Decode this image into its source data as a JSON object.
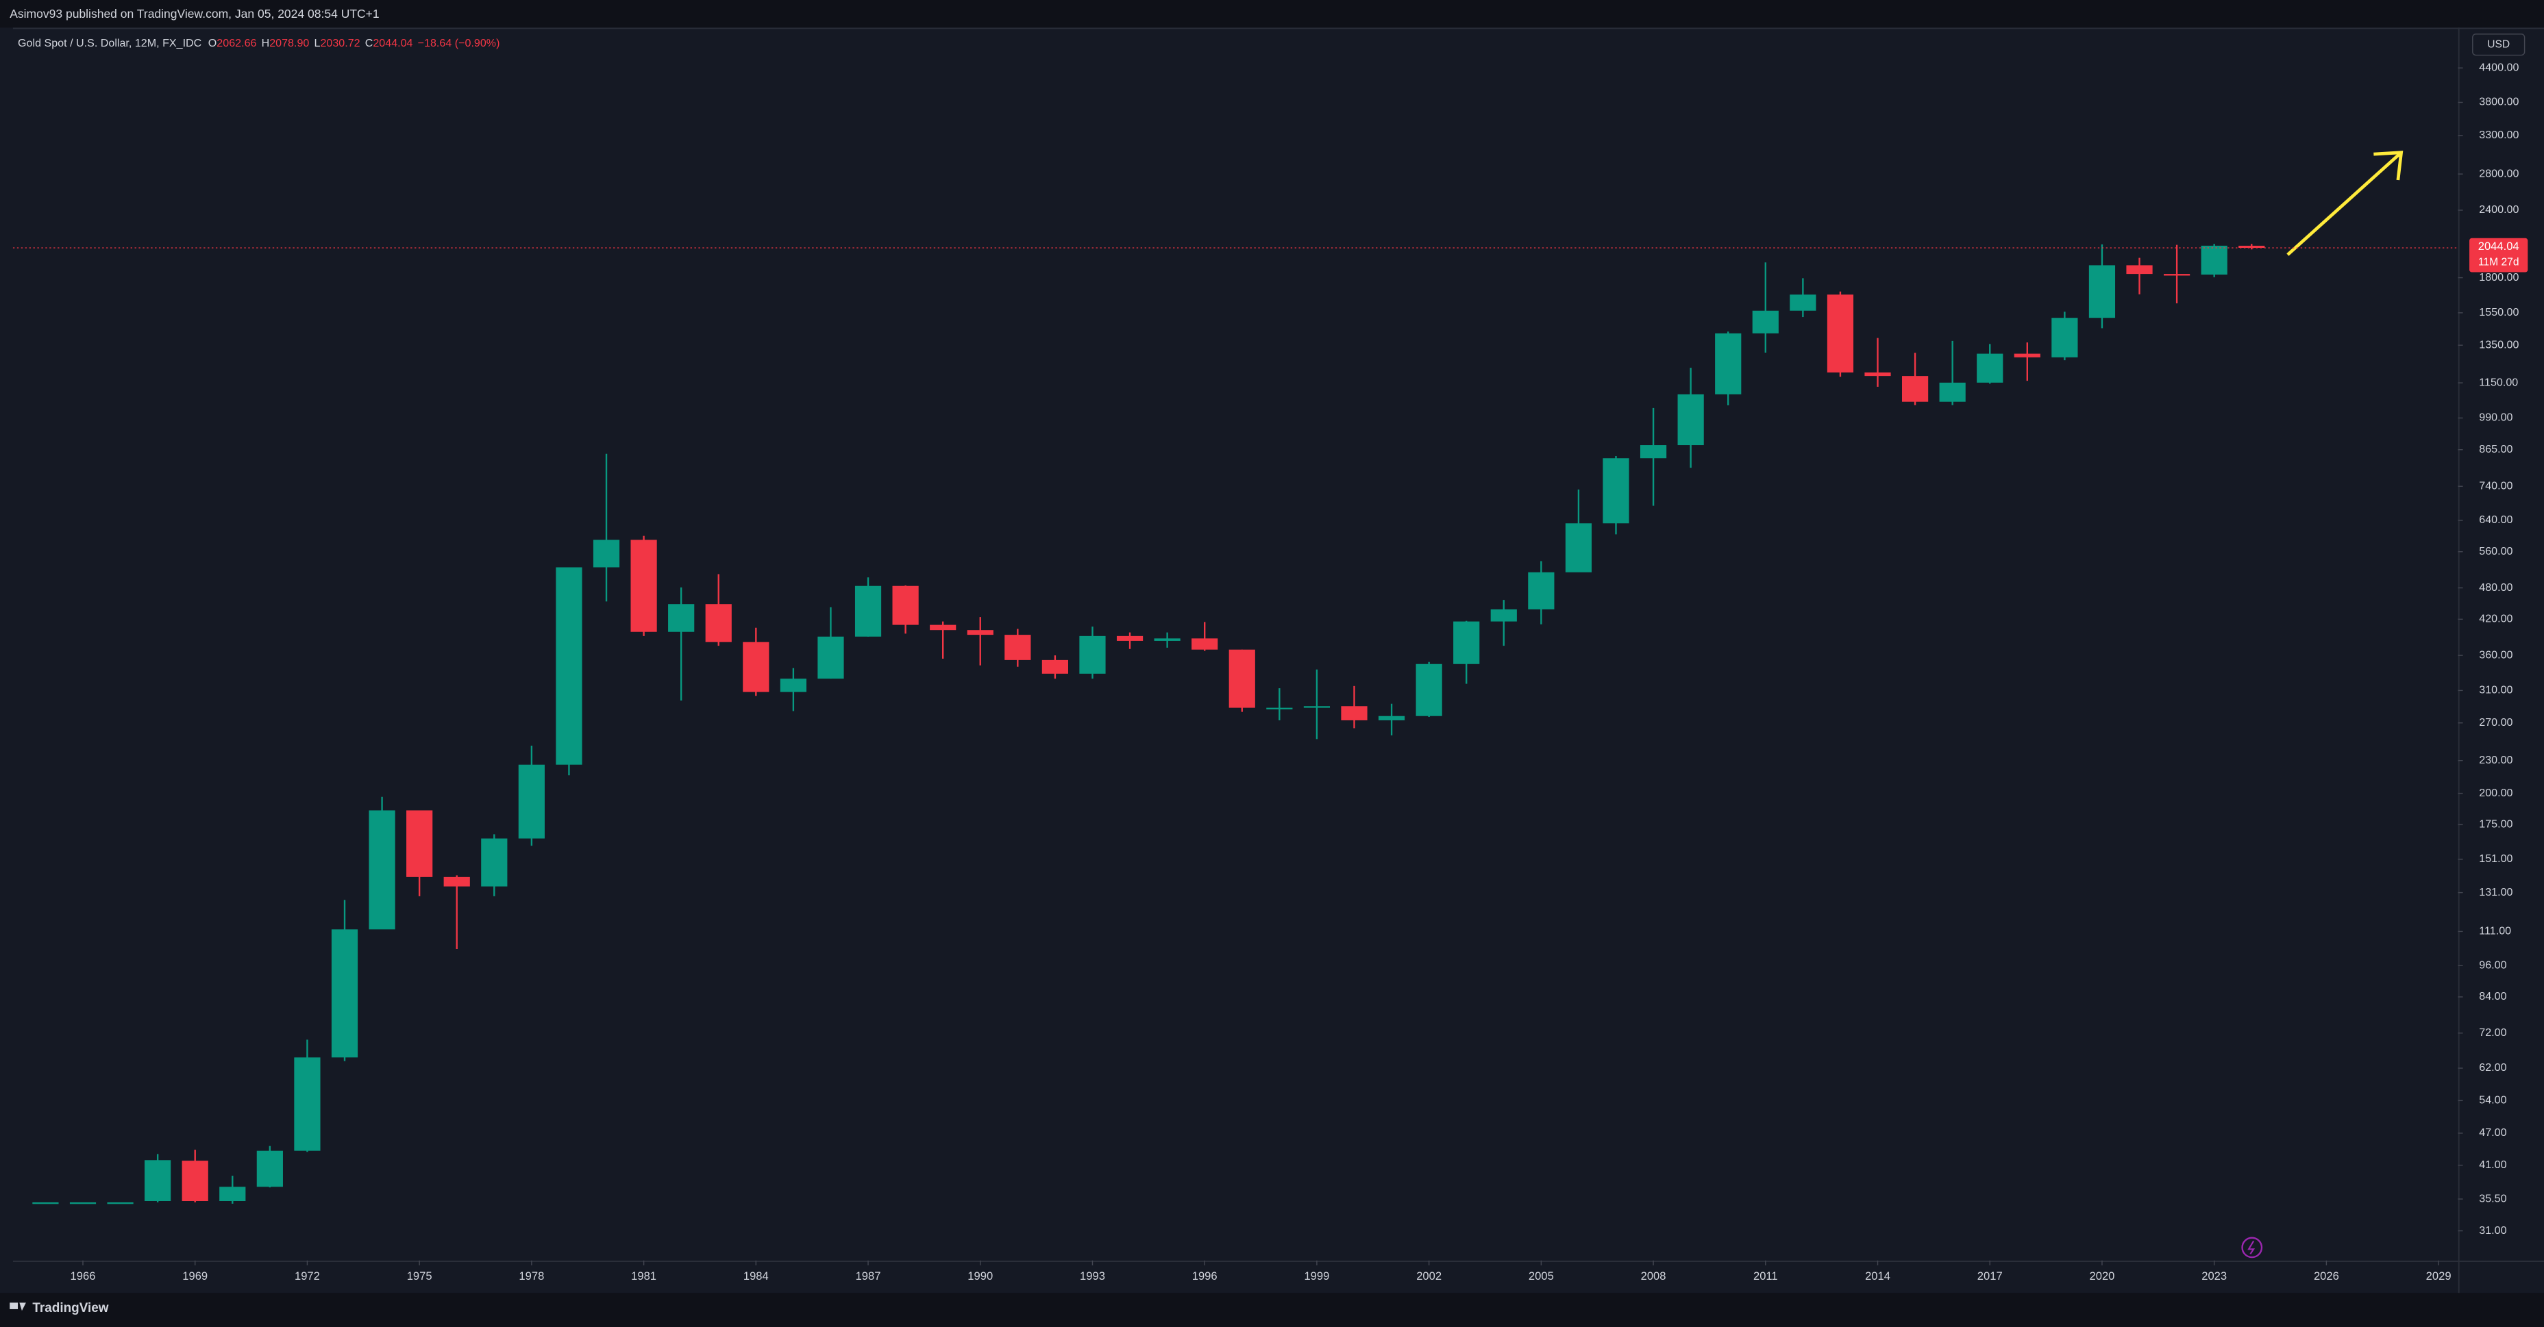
{
  "chart_data": {
    "type": "candlestick",
    "publisher": "Asimov93 published on TradingView.com, Jan 05, 2024 08:54 UTC+1",
    "symbol": "Gold Spot / U.S. Dollar, 12M, FX_IDC",
    "legend_fields": [
      {
        "name": "O",
        "value": 2062.66,
        "label": "2062.66"
      },
      {
        "name": "H",
        "value": 2078.9,
        "label": "2078.90"
      },
      {
        "name": "L",
        "value": 2030.72,
        "label": "2030.72"
      },
      {
        "name": "C",
        "value": 2044.04,
        "label": "2044.04"
      }
    ],
    "change": "−18.64 (−0.90%)",
    "currency": "USD",
    "countdown": "11M 27d",
    "brand": "TradingView",
    "up_color": "#089981",
    "down_color": "#f23645",
    "log_scale": true,
    "grid": false,
    "x": [
      1965,
      1966,
      1967,
      1968,
      1969,
      1970,
      1971,
      1972,
      1973,
      1974,
      1975,
      1976,
      1977,
      1978,
      1979,
      1980,
      1981,
      1982,
      1983,
      1984,
      1985,
      1986,
      1987,
      1988,
      1989,
      1990,
      1991,
      1992,
      1993,
      1994,
      1995,
      1996,
      1997,
      1998,
      1999,
      2000,
      2001,
      2002,
      2003,
      2004,
      2005,
      2006,
      2007,
      2008,
      2009,
      2010,
      2011,
      2012,
      2013,
      2014,
      2015,
      2016,
      2017,
      2018,
      2019,
      2020,
      2021,
      2022,
      2023,
      2024
    ],
    "open": [
      35,
      35,
      35,
      35.2,
      41.8,
      35.2,
      37.4,
      43.6,
      64.9,
      112,
      186,
      140,
      134.5,
      165,
      226,
      524,
      589,
      398,
      448,
      381,
      308,
      326,
      390,
      484,
      410,
      401,
      393,
      353,
      333,
      391,
      383,
      387,
      369,
      288,
      288,
      290,
      273,
      278,
      347,
      416,
      438,
      513,
      632,
      834,
      882,
      1095,
      1420,
      1564,
      1675,
      1202,
      1184,
      1061,
      1151,
      1302,
      1282,
      1517,
      1898,
      1829,
      1824,
      2062.66
    ],
    "high": [
      35,
      35,
      35,
      43,
      43.8,
      39.2,
      44.5,
      70,
      127,
      197,
      186,
      141,
      168,
      245,
      524,
      850,
      599,
      481,
      509,
      405,
      341,
      442,
      502,
      485,
      416,
      424,
      403,
      360,
      407,
      397,
      397,
      415,
      369,
      313,
      339,
      316,
      293,
      350,
      417,
      456,
      538,
      730,
      842,
      1033,
      1226,
      1431,
      1921,
      1796,
      1697,
      1392,
      1307,
      1375,
      1357,
      1366,
      1557,
      2075,
      1959,
      2070,
      2079,
      2078.9
    ],
    "low": [
      35,
      35,
      35,
      35,
      35,
      34.8,
      37.3,
      43.4,
      63.9,
      115,
      129,
      103,
      129,
      160,
      216,
      453,
      391,
      297,
      375,
      303,
      284,
      326,
      390,
      395,
      355,
      345,
      343,
      326,
      326,
      370,
      372,
      367,
      283,
      273,
      252,
      264,
      256,
      277,
      319,
      375,
      411,
      518,
      603,
      681,
      801,
      1045,
      1308,
      1522,
      1180,
      1131,
      1046,
      1046,
      1146,
      1160,
      1266,
      1451,
      1677,
      1614,
      1804,
      2030.72
    ],
    "close": [
      35,
      35,
      35,
      41.9,
      35.2,
      37.4,
      43.6,
      64.9,
      112,
      186,
      140,
      134.5,
      165,
      226,
      524,
      589,
      398,
      448,
      381,
      308,
      326,
      390,
      484,
      410,
      401,
      393,
      353,
      333,
      391,
      383,
      387,
      369,
      288,
      288,
      290,
      273,
      278,
      347,
      416,
      438,
      513,
      632,
      834,
      882,
      1095,
      1420,
      1564,
      1675,
      1202,
      1184,
      1061,
      1151,
      1302,
      1282,
      1517,
      1898,
      1829,
      1824,
      2063,
      2044.04
    ],
    "xlim": [
      1964.13,
      2029.52
    ],
    "xticks": [
      1966,
      1969,
      1972,
      1975,
      1978,
      1981,
      1984,
      1987,
      1990,
      1993,
      1996,
      1999,
      2002,
      2005,
      2008,
      2011,
      2014,
      2017,
      2020,
      2023,
      2026,
      2029
    ],
    "ylim": [
      27.7,
      5190
    ],
    "yticks": [
      {
        "value": 4400,
        "label": "4400.00"
      },
      {
        "value": 3800,
        "label": "3800.00"
      },
      {
        "value": 3300,
        "label": "3300.00"
      },
      {
        "value": 2800,
        "label": "2800.00"
      },
      {
        "value": 2400,
        "label": "2400.00"
      },
      {
        "value": 1800,
        "label": "1800.00"
      },
      {
        "value": 1550,
        "label": "1550.00"
      },
      {
        "value": 1350,
        "label": "1350.00"
      },
      {
        "value": 1150,
        "label": "1150.00"
      },
      {
        "value": 990,
        "label": "990.00"
      },
      {
        "value": 865,
        "label": "865.00"
      },
      {
        "value": 740,
        "label": "740.00"
      },
      {
        "value": 640,
        "label": "640.00"
      },
      {
        "value": 560,
        "label": "560.00"
      },
      {
        "value": 480,
        "label": "480.00"
      },
      {
        "value": 420,
        "label": "420.00"
      },
      {
        "value": 360,
        "label": "360.00"
      },
      {
        "value": 310,
        "label": "310.00"
      },
      {
        "value": 270,
        "label": "270.00"
      },
      {
        "value": 230,
        "label": "230.00"
      },
      {
        "value": 200,
        "label": "200.00"
      },
      {
        "value": 175,
        "label": "175.00"
      },
      {
        "value": 151,
        "label": "151.00"
      },
      {
        "value": 131,
        "label": "131.00"
      },
      {
        "value": 111,
        "label": "111.00"
      },
      {
        "value": 96,
        "label": "96.00"
      },
      {
        "value": 84,
        "label": "84.00"
      },
      {
        "value": 72,
        "label": "72.00"
      },
      {
        "value": 62,
        "label": "62.00"
      },
      {
        "value": 54,
        "label": "54.00"
      },
      {
        "value": 47,
        "label": "47.00"
      },
      {
        "value": 41,
        "label": "41.00"
      },
      {
        "value": 35.5,
        "label": "35.50"
      },
      {
        "value": 31,
        "label": "31.00"
      }
    ]
  }
}
